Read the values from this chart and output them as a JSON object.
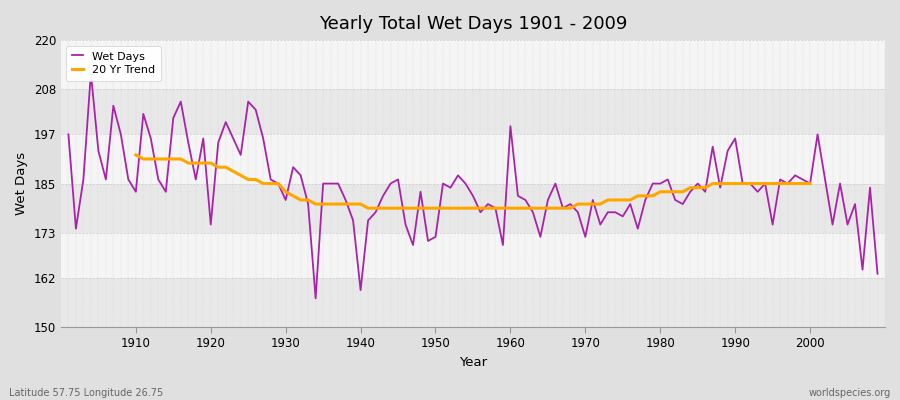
{
  "title": "Yearly Total Wet Days 1901 - 2009",
  "xlabel": "Year",
  "ylabel": "Wet Days",
  "footnote_left": "Latitude 57.75 Longitude 26.75",
  "footnote_right": "worldspecies.org",
  "ylim": [
    150,
    220
  ],
  "yticks": [
    150,
    162,
    173,
    185,
    197,
    208,
    220
  ],
  "line_color": "#AA22AA",
  "trend_color": "#FFA500",
  "fig_bg_color": "#E0E0E0",
  "plot_bg_color": "#F0F0F0",
  "band_color_even": "#E8E8E8",
  "band_color_odd": "#F5F5F5",
  "legend_wet": "Wet Days",
  "legend_trend": "20 Yr Trend",
  "years": [
    1901,
    1902,
    1903,
    1904,
    1905,
    1906,
    1907,
    1908,
    1909,
    1910,
    1911,
    1912,
    1913,
    1914,
    1915,
    1916,
    1917,
    1918,
    1919,
    1920,
    1921,
    1922,
    1923,
    1924,
    1925,
    1926,
    1927,
    1928,
    1929,
    1930,
    1931,
    1932,
    1933,
    1934,
    1935,
    1936,
    1937,
    1938,
    1939,
    1940,
    1941,
    1942,
    1943,
    1944,
    1945,
    1946,
    1947,
    1948,
    1949,
    1950,
    1951,
    1952,
    1953,
    1954,
    1955,
    1956,
    1957,
    1958,
    1959,
    1960,
    1961,
    1962,
    1963,
    1964,
    1965,
    1966,
    1967,
    1968,
    1969,
    1970,
    1971,
    1972,
    1973,
    1974,
    1975,
    1976,
    1977,
    1978,
    1979,
    1980,
    1981,
    1982,
    1983,
    1984,
    1985,
    1986,
    1987,
    1988,
    1989,
    1990,
    1991,
    1992,
    1993,
    1994,
    1995,
    1996,
    1997,
    1998,
    1999,
    2000,
    2001,
    2002,
    2003,
    2004,
    2005,
    2006,
    2007,
    2008,
    2009
  ],
  "wet_days": [
    197,
    174,
    186,
    212,
    193,
    186,
    204,
    197,
    186,
    183,
    202,
    196,
    186,
    183,
    201,
    205,
    195,
    186,
    196,
    175,
    195,
    200,
    196,
    192,
    205,
    203,
    196,
    186,
    185,
    181,
    189,
    187,
    180,
    157,
    185,
    185,
    185,
    181,
    176,
    159,
    176,
    178,
    182,
    185,
    186,
    175,
    170,
    183,
    171,
    172,
    185,
    184,
    187,
    185,
    182,
    178,
    180,
    179,
    170,
    199,
    182,
    181,
    178,
    172,
    181,
    185,
    179,
    180,
    178,
    172,
    181,
    175,
    178,
    178,
    177,
    180,
    174,
    181,
    185,
    185,
    186,
    181,
    180,
    183,
    185,
    183,
    194,
    184,
    193,
    196,
    185,
    185,
    183,
    185,
    175,
    186,
    185,
    187,
    186,
    185,
    197,
    186,
    175,
    185,
    175,
    180,
    164,
    184,
    163
  ],
  "trend_years": [
    1910,
    1911,
    1912,
    1913,
    1914,
    1915,
    1916,
    1917,
    1918,
    1919,
    1920,
    1921,
    1922,
    1923,
    1924,
    1925,
    1926,
    1927,
    1928,
    1929,
    1930,
    1931,
    1932,
    1933,
    1934,
    1935,
    1936,
    1937,
    1938,
    1939,
    1940,
    1941,
    1942,
    1943,
    1944,
    1945,
    1946,
    1947,
    1948,
    1949,
    1950,
    1951,
    1952,
    1953,
    1954,
    1955,
    1956,
    1957,
    1958,
    1959,
    1960,
    1961,
    1962,
    1963,
    1964,
    1965,
    1966,
    1967,
    1968,
    1969,
    1970,
    1971,
    1972,
    1973,
    1974,
    1975,
    1976,
    1977,
    1978,
    1979,
    1980,
    1981,
    1982,
    1983,
    1984,
    1985,
    1986,
    1987,
    1988,
    1989,
    1990,
    1991,
    1992,
    1993,
    1994,
    1995,
    1996,
    1997,
    1998,
    1999,
    2000
  ],
  "trend_values": [
    192,
    191,
    191,
    191,
    191,
    191,
    191,
    190,
    190,
    190,
    190,
    189,
    189,
    188,
    187,
    186,
    186,
    185,
    185,
    185,
    183,
    182,
    181,
    181,
    180,
    180,
    180,
    180,
    180,
    180,
    180,
    179,
    179,
    179,
    179,
    179,
    179,
    179,
    179,
    179,
    179,
    179,
    179,
    179,
    179,
    179,
    179,
    179,
    179,
    179,
    179,
    179,
    179,
    179,
    179,
    179,
    179,
    179,
    179,
    180,
    180,
    180,
    180,
    181,
    181,
    181,
    181,
    182,
    182,
    182,
    183,
    183,
    183,
    183,
    184,
    184,
    184,
    185,
    185,
    185,
    185,
    185,
    185,
    185,
    185,
    185,
    185,
    185,
    185,
    185,
    185
  ]
}
